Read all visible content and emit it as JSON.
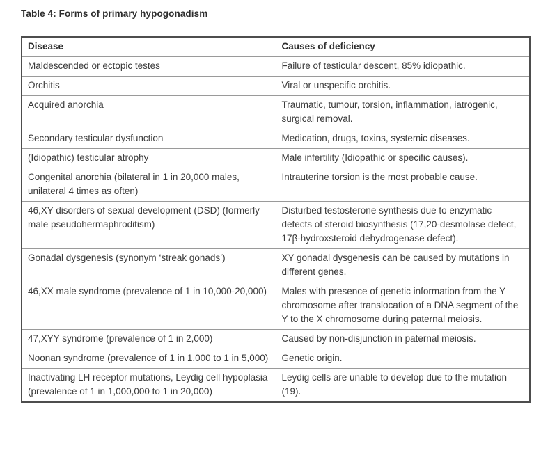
{
  "page": {
    "caption": "Table 4: Forms of primary hypogonadism"
  },
  "colors": {
    "text": "#3b3b3b",
    "border_outer": "#4d4d4d",
    "border_inner": "#9a9a9a",
    "background": "#ffffff"
  },
  "table": {
    "headers": [
      "Disease",
      "Causes of deficiency"
    ],
    "rows": [
      {
        "disease": "Maldescended or ectopic testes",
        "cause": "Failure of testicular descent, 85% idiopathic."
      },
      {
        "disease": "Orchitis",
        "cause": "Viral or unspecific orchitis."
      },
      {
        "disease": "Acquired anorchia",
        "cause": "Traumatic, tumour, torsion, inflammation, iatrogenic, surgical removal."
      },
      {
        "disease": "Secondary testicular dysfunction",
        "cause": "Medication, drugs, toxins, systemic diseases."
      },
      {
        "disease": "(Idiopathic) testicular atrophy",
        "cause": "Male infertility (Idiopathic or specific causes)."
      },
      {
        "disease": "Congenital anorchia (bilateral in 1 in 20,000 males, unilateral 4 times as often)",
        "cause": "Intrauterine torsion is the most probable cause."
      },
      {
        "disease": "46,XY disorders of sexual development (DSD) (formerly male pseudohermaphroditism)",
        "cause": "Disturbed testosterone synthesis due to enzymatic defects of steroid biosynthesis (17,20-desmolase defect, 17β-hydroxsteroid dehydrogenase defect)."
      },
      {
        "disease": "Gonadal dysgenesis (synonym ‘streak gonads’)",
        "cause": "XY gonadal dysgenesis can be caused by mutations in different genes."
      },
      {
        "disease": "46,XX male syndrome (prevalence of 1 in 10,000-20,000)",
        "cause": "Males with presence of genetic information from the Y chromosome after translocation of a DNA segment of the Y to the X chromosome during paternal meiosis."
      },
      {
        "disease": "47,XYY syndrome (prevalence of 1 in 2,000)",
        "cause": "Caused by non-disjunction in paternal meiosis."
      },
      {
        "disease": "Noonan syndrome (prevalence of 1 in 1,000 to 1 in 5,000)",
        "cause": "Genetic origin."
      },
      {
        "disease": "Inactivating LH receptor mutations, Leydig cell hypoplasia (prevalence of 1 in 1,000,000 to 1 in 20,000)",
        "cause": "Leydig cells are unable to develop due to the mutation (19)."
      }
    ]
  }
}
